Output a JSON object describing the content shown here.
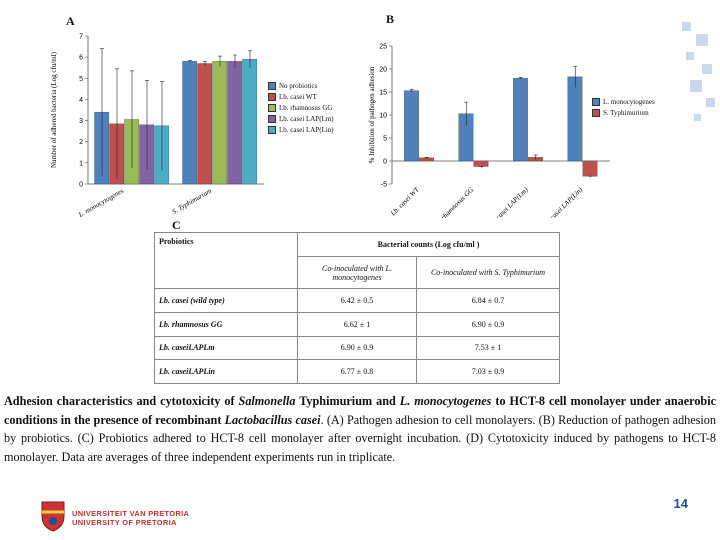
{
  "chart_data": [
    {
      "type": "bar",
      "panel": "A",
      "ylabel": "Number of adhered bacteria (Log cfu/ml)",
      "ylim": [
        0,
        7
      ],
      "yticks": [
        "0",
        "1",
        "2",
        "3",
        "4",
        "5",
        "6",
        "7"
      ],
      "categories": [
        "L. monocytogenes",
        "S. Typhimurium"
      ],
      "series": [
        {
          "name": "No probiotics",
          "color": "#4f81bd",
          "values": [
            3.4,
            5.8
          ],
          "errors": [
            3.0,
            0.05
          ]
        },
        {
          "name": "Lb. casei WT",
          "color": "#c0504d",
          "values": [
            2.85,
            5.7
          ],
          "errors": [
            2.6,
            0.1
          ]
        },
        {
          "name": "Lb. rhamnosus GG",
          "color": "#9bbb59",
          "values": [
            3.05,
            5.8
          ],
          "errors": [
            2.3,
            0.25
          ]
        },
        {
          "name": "Lb. casei LAP(Lm)",
          "color": "#8064a2",
          "values": [
            2.8,
            5.8
          ],
          "errors": [
            2.1,
            0.3
          ]
        },
        {
          "name": "Lb. casei LAP(Lin)",
          "color": "#4bacc6",
          "values": [
            2.75,
            5.9
          ],
          "errors": [
            2.1,
            0.4
          ]
        }
      ]
    },
    {
      "type": "bar",
      "panel": "B",
      "ylabel": "% Inhibition of pathogen adhesion",
      "ylim": [
        -5,
        25
      ],
      "yticks": [
        "-5",
        "0",
        "5",
        "10",
        "15",
        "20",
        "25"
      ],
      "categories": [
        "Lb. casei WT",
        "Lb. rhamnosus GG",
        "Lb. casei LAP(Lm)",
        "Lb. casei LAP(Lin)"
      ],
      "series": [
        {
          "name": "L. monocytogenes",
          "color": "#4f81bd",
          "values": [
            15.3,
            10.3,
            18.0,
            18.3
          ],
          "errors": [
            0.3,
            2.5,
            0.2,
            2.3
          ]
        },
        {
          "name": "S. Typhimurium",
          "color": "#c0504d",
          "values": [
            0.7,
            -1.2,
            0.8,
            -3.3
          ],
          "errors": [
            0.1,
            0.3,
            0.5,
            0.2
          ]
        }
      ]
    }
  ],
  "panels": {
    "a": "A",
    "b": "B",
    "c": "C"
  },
  "table": {
    "header_probiotics": "Probiotics",
    "header_counts": "Bacterial counts (Log cfu/ml )",
    "sub1": "Co-inoculated with L. monocytogenes",
    "sub2": "Co-inoculated with S. Typhimurium",
    "rows": [
      {
        "name": "Lb. casei (wild type)",
        "v1": "6.42 ± 0.5",
        "v2": "6.84 ± 0.7"
      },
      {
        "name": "Lb. rhamnosus GG",
        "v1": "6.62 ± 1",
        "v2": "6.90 ± 0.9"
      },
      {
        "name": "Lb. caseiLAPLm",
        "v1": "6.90 ± 0.9",
        "v2": "7.53 ± 1"
      },
      {
        "name": "Lb. caseiLAPLin",
        "v1": "6.77 ± 0.8",
        "v2": "7.03 ± 0.9"
      }
    ]
  },
  "caption": {
    "p1": "Adhesion characteristics and cytotoxicity of ",
    "p2": "Salmonella",
    "p3": " Typhimurium and ",
    "p4": "L. monocytogenes",
    "p5": " to HCT-8 cell monolayer under anaerobic conditions in the presence of recombinant ",
    "p6": "Lactobacillus casei",
    "p7": ". (A) Pathogen adhesion to cell monolayers. (B) Reduction of pathogen adhesion by probiotics. (C) Probiotics adhered to HCT-8 cell monolayer after overnight incubation. (D) Cytotoxicity induced by pathogens to HCT-8 monolayer. Data are averages of three independent experiments run in triplicate."
  },
  "footer": {
    "page_number": "14",
    "university_line1": "UNIVERSITEIT VAN PRETORIA",
    "university_line2": "UNIVERSITY OF PRETORIA"
  }
}
